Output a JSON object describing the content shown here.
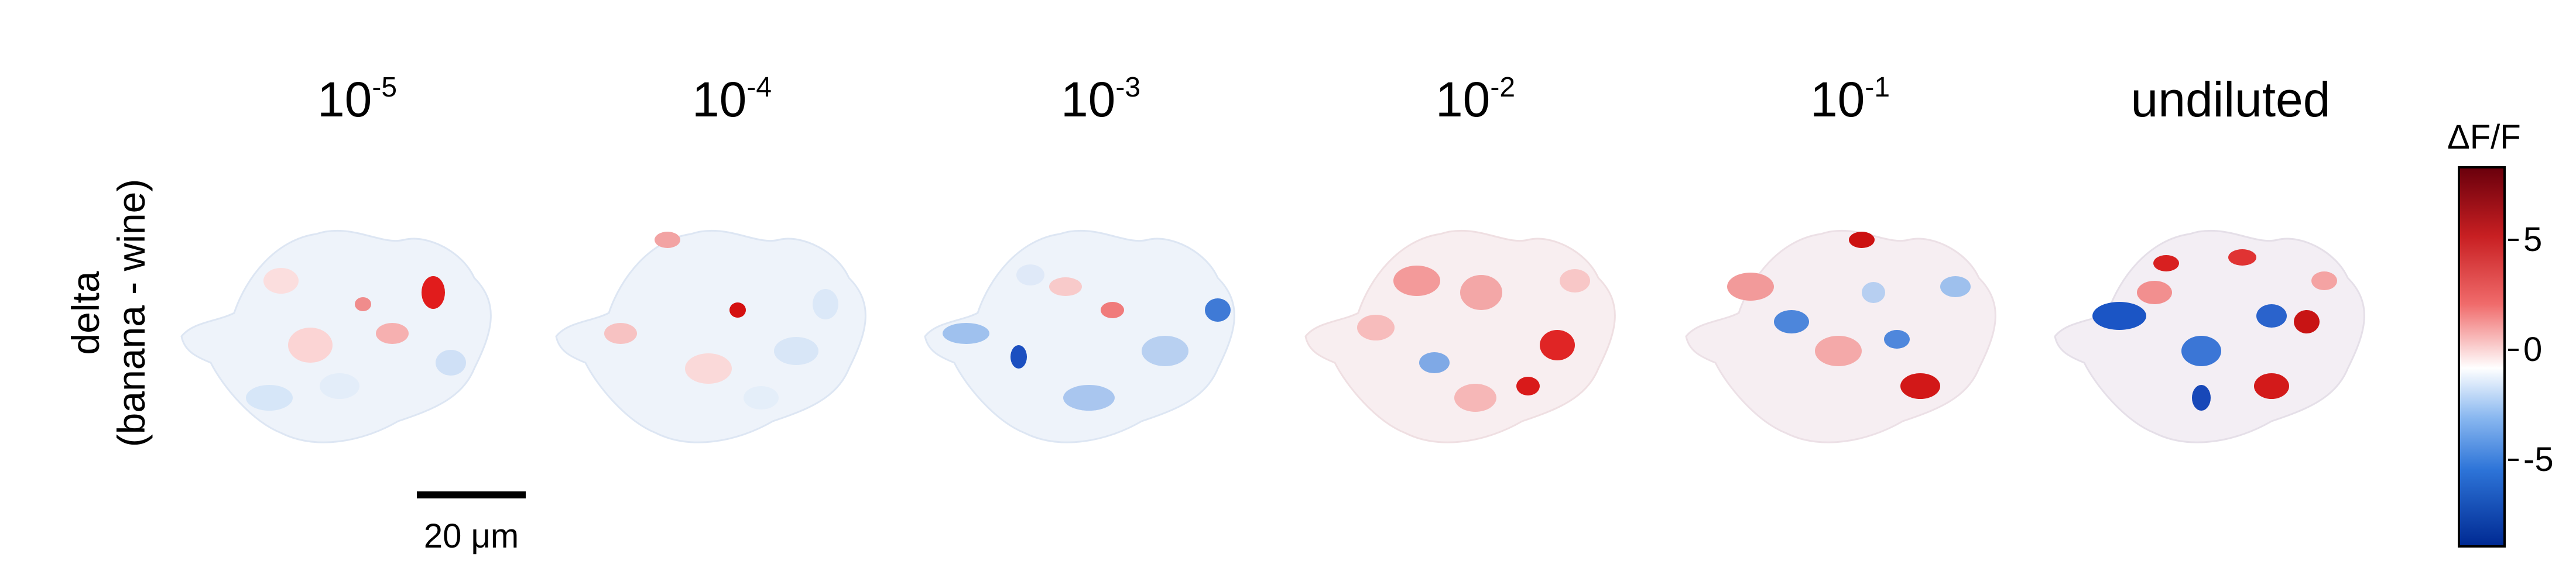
{
  "row_label": {
    "line1": "delta",
    "line2": "(banana - wine)"
  },
  "panels": [
    {
      "base": "10",
      "exp": "-5"
    },
    {
      "base": "10",
      "exp": "-4"
    },
    {
      "base": "10",
      "exp": "-3"
    },
    {
      "base": "10",
      "exp": "-2"
    },
    {
      "base": "10",
      "exp": "-1"
    },
    {
      "label": "undiluted"
    }
  ],
  "scale_bar": {
    "label": "20 μm"
  },
  "colorbar": {
    "title": "ΔF/F",
    "ticks": [
      "5",
      "0",
      "-5"
    ],
    "colors": {
      "max": "#6b000c",
      "high": "#c81f22",
      "zero": "#ffffff",
      "low": "#2d74d8",
      "min": "#002a93"
    }
  }
}
